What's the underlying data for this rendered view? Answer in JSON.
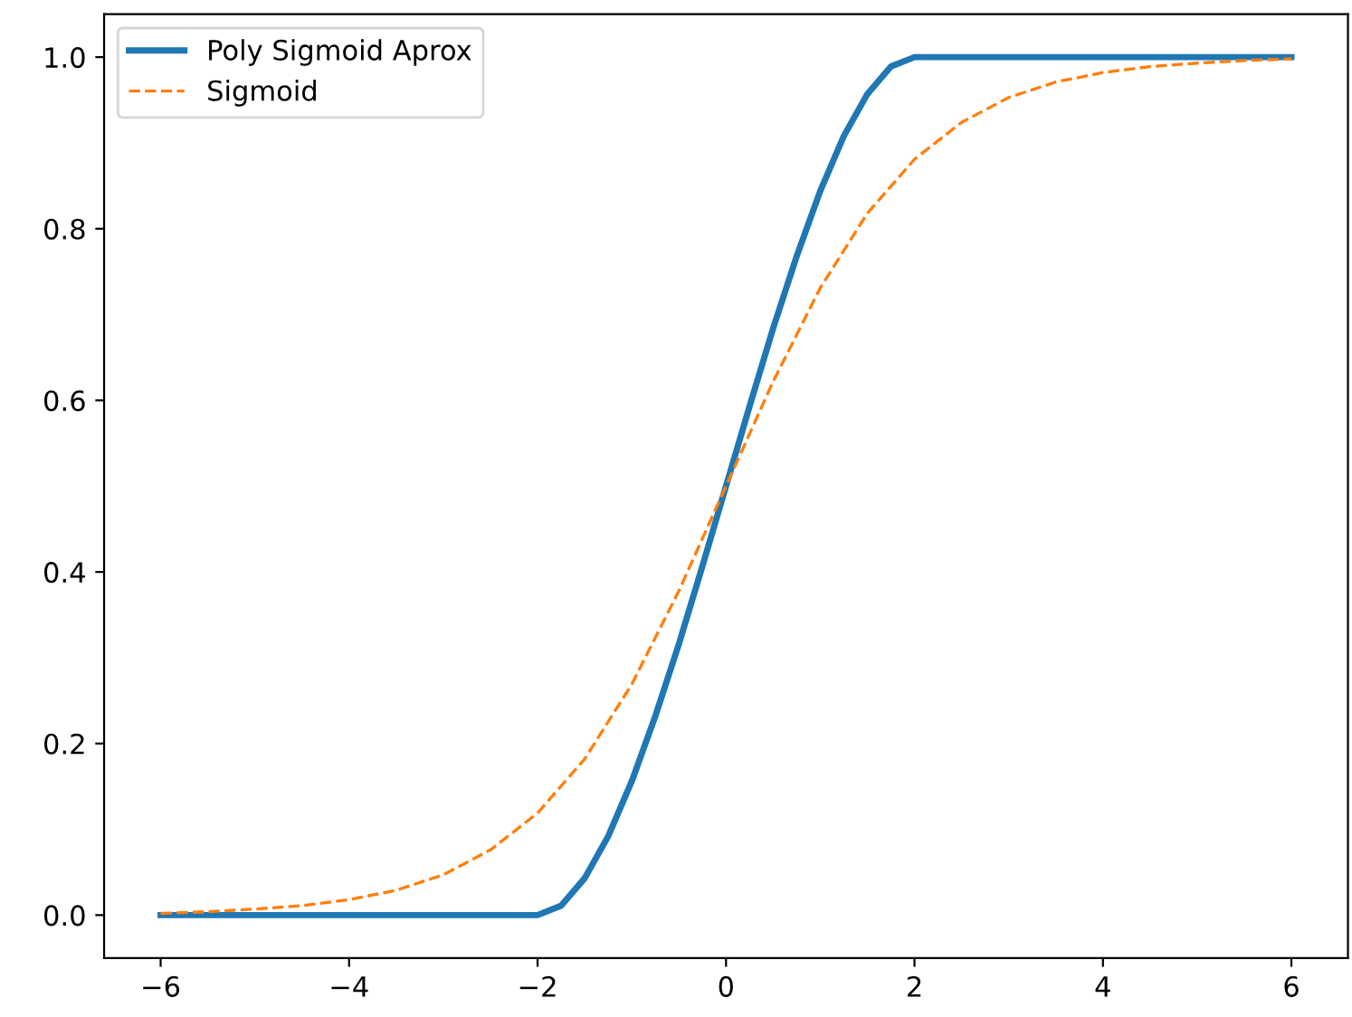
{
  "chart_data": {
    "type": "line",
    "xlim": [
      -6.6,
      6.6
    ],
    "ylim": [
      -0.05,
      1.05
    ],
    "xticks": [
      {
        "value": -6,
        "label": "−6"
      },
      {
        "value": -4,
        "label": "−4"
      },
      {
        "value": -2,
        "label": "−2"
      },
      0,
      2,
      4,
      6
    ],
    "yticks": [
      {
        "value": 0,
        "label": "0.0"
      },
      0.2,
      0.4,
      0.6,
      0.8,
      {
        "value": 1,
        "label": "1.0"
      }
    ],
    "grid": false,
    "legend": "top left",
    "marker": "none",
    "series": [
      {
        "name": "Poly Sigmoid Aprox",
        "color": "#1f77b4",
        "line_style": "solid",
        "x": [
          -6,
          -2,
          -1.75,
          -1.5,
          -1.25,
          -1,
          -0.75,
          -0.5,
          -0.25,
          0,
          0.25,
          0.5,
          0.75,
          1,
          1.25,
          1.5,
          1.75,
          2,
          6
        ],
        "values": [
          0,
          0,
          0.011,
          0.043,
          0.092,
          0.156,
          0.232,
          0.316,
          0.407,
          0.5,
          0.593,
          0.684,
          0.768,
          0.844,
          0.908,
          0.957,
          0.989,
          1,
          1
        ]
      },
      {
        "name": "Sigmoid",
        "color": "#ff7f0e",
        "line_style": "dashed",
        "x": [
          -6,
          -5.5,
          -5,
          -4.5,
          -4,
          -3.5,
          -3,
          -2.5,
          -2,
          -1.5,
          -1,
          -0.5,
          0,
          0.5,
          1,
          1.5,
          2,
          2.5,
          3,
          3.5,
          4,
          4.5,
          5,
          5.5,
          6
        ],
        "values": [
          0.002,
          0.004,
          0.007,
          0.011,
          0.018,
          0.029,
          0.047,
          0.076,
          0.119,
          0.182,
          0.269,
          0.378,
          0.5,
          0.622,
          0.731,
          0.818,
          0.881,
          0.924,
          0.953,
          0.971,
          0.982,
          0.989,
          0.993,
          0.996,
          0.998
        ]
      }
    ]
  }
}
